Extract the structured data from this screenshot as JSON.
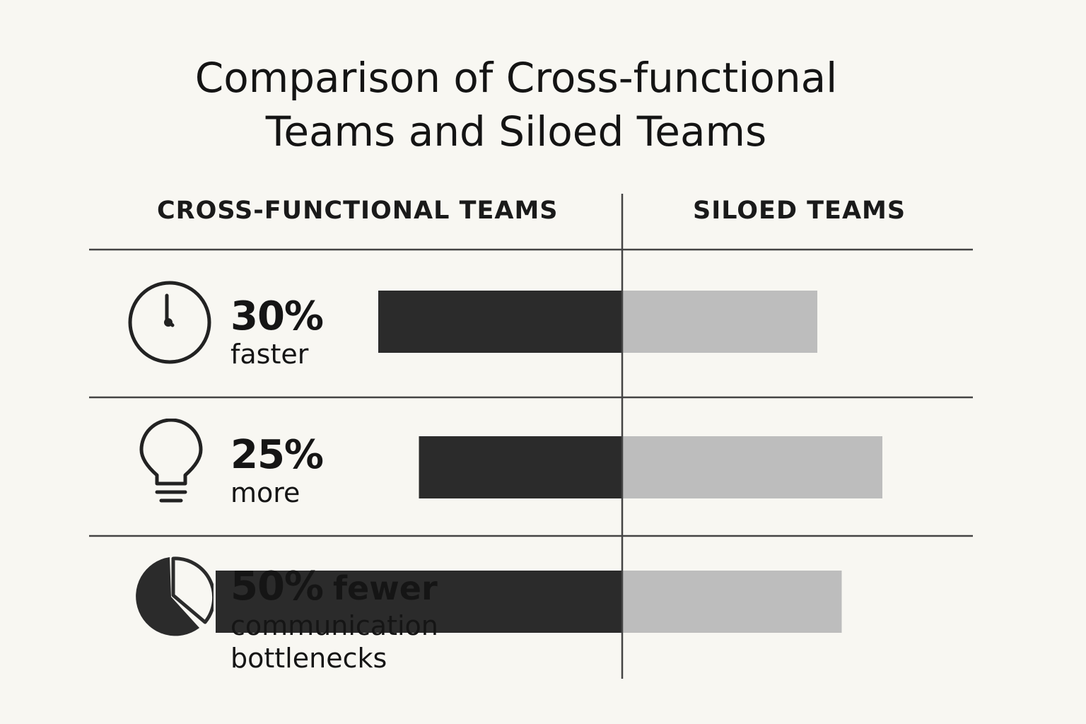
{
  "title_line1": "Comparison of Cross-functional",
  "title_line2": "Teams and Siloed Teams",
  "columns": {
    "left": "CROSS-FUNCTIONAL TEAMS",
    "right": "SILOED TEAMS"
  },
  "metrics": [
    {
      "icon": "clock-icon",
      "pct": "30%",
      "line1": "faster",
      "line2": ""
    },
    {
      "icon": "lightbulb-icon",
      "pct": "25%",
      "line1": "more",
      "line2": ""
    },
    {
      "icon": "pie-chart-icon",
      "pct": "50%",
      "inline": "fewer",
      "line1": "communication",
      "line2": "bottlenecks"
    }
  ],
  "colors": {
    "cross_functional": "#2b2b2b",
    "siloed": "#bdbdbd",
    "rule": "#444444",
    "background": "#f8f7f2"
  },
  "chart_data": {
    "type": "bar",
    "title": "Comparison of Cross-functional Teams and Siloed Teams",
    "categories": [
      "30% faster",
      "25% more",
      "50% fewer communication bottlenecks"
    ],
    "series": [
      {
        "name": "CROSS-FUNCTIONAL TEAMS",
        "values": [
          30,
          25,
          50
        ]
      },
      {
        "name": "SILOED TEAMS",
        "values": [
          24,
          32,
          27
        ]
      }
    ],
    "xlabel": "",
    "ylabel": "",
    "grid": false,
    "legend": "column headers"
  }
}
